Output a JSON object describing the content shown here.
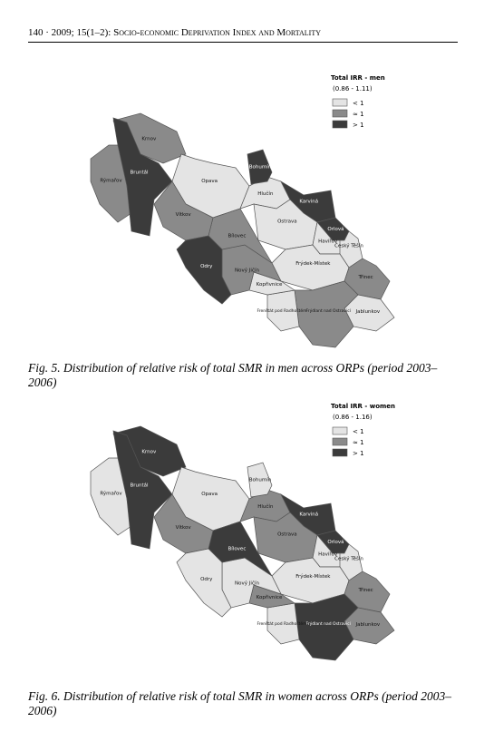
{
  "header": {
    "page": "140",
    "separator": "·",
    "citation": "2009; 15(1–2): Socio-economic Deprivation Index and Mortality"
  },
  "figures": [
    {
      "legend": {
        "title": "Total IRR - men",
        "range": "(0.86 - 1.11)",
        "items": [
          {
            "label": "< 1",
            "color": "#e4e4e4"
          },
          {
            "label": "≈ 1",
            "color": "#8a8a8a"
          },
          {
            "label": "> 1",
            "color": "#3b3b3b"
          }
        ]
      },
      "regions": [
        {
          "name": "Krnov",
          "level": 1
        },
        {
          "name": "Rýmařov",
          "level": 1
        },
        {
          "name": "Bruntál",
          "level": 2
        },
        {
          "name": "Opava",
          "level": 0
        },
        {
          "name": "Hlučín",
          "level": 0
        },
        {
          "name": "Bohumín",
          "level": 2
        },
        {
          "name": "Karviná",
          "level": 2
        },
        {
          "name": "Orlová",
          "level": 2
        },
        {
          "name": "Ostrava",
          "level": 0
        },
        {
          "name": "Havířov",
          "level": 0
        },
        {
          "name": "Český Těšín",
          "level": 0
        },
        {
          "name": "Frýdek-Místek",
          "level": 0
        },
        {
          "name": "Třinec",
          "level": 1
        },
        {
          "name": "Jablunkov",
          "level": 0
        },
        {
          "name": "Frýdlant nad Ostravicí",
          "level": 1
        },
        {
          "name": "Frenštát pod Radhoštěm",
          "level": 0
        },
        {
          "name": "Kopřivnice",
          "level": 0
        },
        {
          "name": "Nový Jičín",
          "level": 1
        },
        {
          "name": "Bílovec",
          "level": 1
        },
        {
          "name": "Vítkov",
          "level": 1
        },
        {
          "name": "Odry",
          "level": 2
        }
      ],
      "caption": "Fig. 5. Distribution of relative risk of total SMR in men across ORPs (period 2003–2006)"
    },
    {
      "legend": {
        "title": "Total IRR - women",
        "range": "(0.86 - 1.16)",
        "items": [
          {
            "label": "< 1",
            "color": "#e4e4e4"
          },
          {
            "label": "≈ 1",
            "color": "#8a8a8a"
          },
          {
            "label": "> 1",
            "color": "#3b3b3b"
          }
        ]
      },
      "regions": [
        {
          "name": "Krnov",
          "level": 2
        },
        {
          "name": "Rýmařov",
          "level": 0
        },
        {
          "name": "Bruntál",
          "level": 2
        },
        {
          "name": "Opava",
          "level": 0
        },
        {
          "name": "Hlučín",
          "level": 1
        },
        {
          "name": "Bohumín",
          "level": 0
        },
        {
          "name": "Karviná",
          "level": 2
        },
        {
          "name": "Orlová",
          "level": 2
        },
        {
          "name": "Ostrava",
          "level": 1
        },
        {
          "name": "Havířov",
          "level": 0
        },
        {
          "name": "Český Těšín",
          "level": 0
        },
        {
          "name": "Frýdek-Místek",
          "level": 0
        },
        {
          "name": "Třinec",
          "level": 1
        },
        {
          "name": "Jablunkov",
          "level": 1
        },
        {
          "name": "Frýdlant nad Ostravicí",
          "level": 2
        },
        {
          "name": "Frenštát pod Radhoštěm",
          "level": 0
        },
        {
          "name": "Kopřivnice",
          "level": 1
        },
        {
          "name": "Nový Jičín",
          "level": 0
        },
        {
          "name": "Bílovec",
          "level": 2
        },
        {
          "name": "Vítkov",
          "level": 1
        },
        {
          "name": "Odry",
          "level": 0
        }
      ],
      "caption": "Fig. 6. Distribution of relative risk of total SMR in women across ORPs (period 2003–2006)"
    }
  ]
}
